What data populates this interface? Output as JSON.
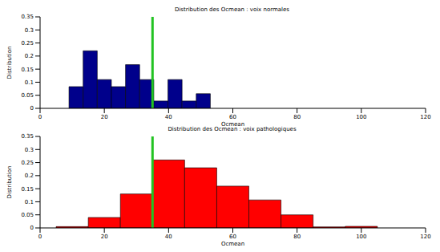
{
  "chart_data": [
    {
      "type": "histogram",
      "title": "Distribution des Ocmean : voix normales",
      "x_label": "Ocmean",
      "y_label": "Distribution",
      "bins": [
        9,
        13.4,
        17.8,
        22.2,
        26.6,
        31,
        35.4,
        39.8,
        44.2,
        48.6,
        53
      ],
      "counts": [
        0.083,
        0.22,
        0.11,
        0.083,
        0.167,
        0.11,
        0.028,
        0.11,
        0.028,
        0.056
      ],
      "color": "#00008b",
      "threshold": 35,
      "xlim": [
        0,
        120
      ],
      "xticks": [
        0,
        20,
        40,
        60,
        80,
        100,
        120
      ],
      "ylim": [
        0,
        0.35
      ],
      "yticks": [
        0,
        0.05,
        0.1,
        0.15,
        0.2,
        0.25,
        0.3,
        0.35
      ]
    },
    {
      "type": "histogram",
      "title": "Distribution des Ocmean : voix pathologiques",
      "x_label": "Ocmean",
      "y_label": "Distribution",
      "bins": [
        5,
        15,
        25,
        35,
        45,
        55,
        65,
        75,
        85,
        95,
        105
      ],
      "counts": [
        0.005,
        0.04,
        0.13,
        0.26,
        0.23,
        0.16,
        0.107,
        0.05,
        0.004,
        0.006
      ],
      "color": "#ff0000",
      "threshold": 35,
      "xlim": [
        0,
        120
      ],
      "xticks": [
        0,
        20,
        40,
        60,
        80,
        100,
        120
      ],
      "ylim": [
        0,
        0.35
      ],
      "yticks": [
        0,
        0.05,
        0.1,
        0.15,
        0.2,
        0.25,
        0.3,
        0.35
      ]
    }
  ]
}
